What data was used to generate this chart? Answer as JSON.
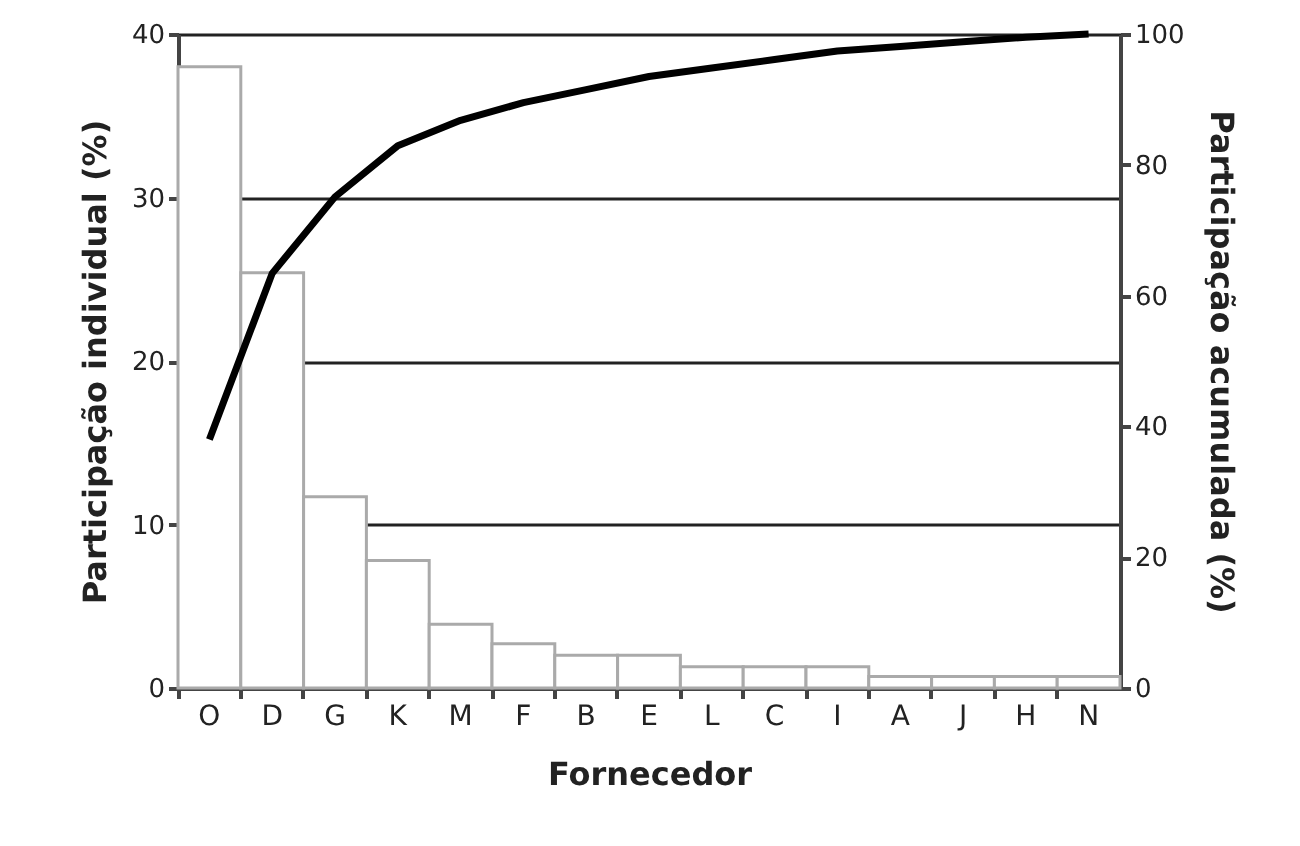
{
  "chart_data": {
    "type": "bar",
    "xlabel": "Fornecedor",
    "ylabel": "Participação individual (%)",
    "y2label": "Participação acumulada (%)",
    "categories": [
      "O",
      "D",
      "G",
      "K",
      "M",
      "F",
      "B",
      "E",
      "L",
      "C",
      "I",
      "A",
      "J",
      "H",
      "N"
    ],
    "series": [
      {
        "color": "#ffffff",
        "values": [
          38,
          25.4,
          11.7,
          7.8,
          3.9,
          2.7,
          2,
          2,
          1.3,
          1.3,
          1.3,
          0.7,
          0.7,
          0.7,
          0.7
        ]
      },
      {
        "type": "line",
        "axis": "y2",
        "color": "#000000",
        "values": [
          38,
          63.4,
          75.1,
          82.9,
          86.8,
          89.5,
          91.5,
          93.5,
          94.8,
          96.1,
          97.4,
          98.1,
          98.8,
          99.5,
          100
        ]
      }
    ],
    "ylim": [
      0,
      40
    ],
    "yticks": [
      0,
      10,
      20,
      30,
      40
    ],
    "y2lim": [
      0,
      100
    ],
    "y2ticks": [
      0,
      20,
      40,
      60,
      80,
      100
    ],
    "grid": "y",
    "marker": "none",
    "line_style": "solid"
  }
}
